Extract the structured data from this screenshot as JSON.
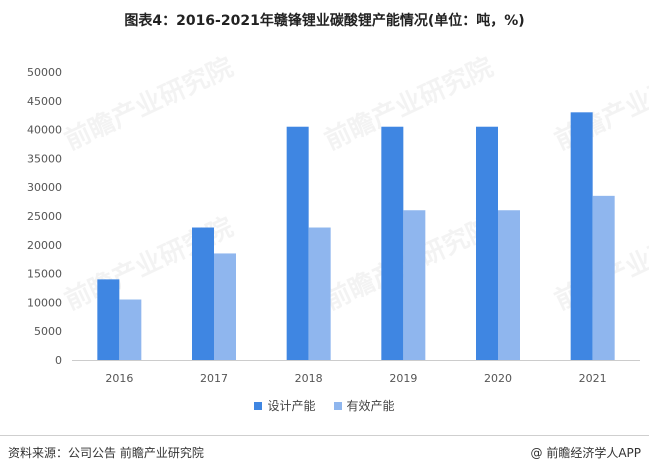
{
  "title": "图表4：2016-2021年赣锋锂业碳酸锂产能情况(单位：吨，%)",
  "watermark": "前瞻产业研究院",
  "colors": {
    "design": "#3f86e2",
    "effective": "#8fb6ee",
    "axis": "#cccccc",
    "text": "#555555"
  },
  "chart_data": {
    "type": "bar",
    "title": "图表4：2016-2021年赣锋锂业碳酸锂产能情况(单位：吨，%)",
    "categories": [
      "2016",
      "2017",
      "2018",
      "2019",
      "2020",
      "2021"
    ],
    "series": [
      {
        "name": "设计产能",
        "values": [
          14000,
          23000,
          40500,
          40500,
          40500,
          43000
        ]
      },
      {
        "name": "有效产能",
        "values": [
          10500,
          18500,
          23000,
          26000,
          26000,
          28500
        ]
      }
    ],
    "ylim": [
      0,
      50000
    ],
    "yticks": [
      0,
      5000,
      10000,
      15000,
      20000,
      25000,
      30000,
      35000,
      40000,
      45000,
      50000
    ],
    "grid": false,
    "legend": "bottom"
  },
  "legend": [
    {
      "label": "设计产能",
      "color": "#3f86e2"
    },
    {
      "label": "有效产能",
      "color": "#8fb6ee"
    }
  ],
  "footer": {
    "source": "资料来源：公司公告 前瞻产业研究院",
    "brand_icon": "@",
    "brand": "前瞻经济学人APP"
  }
}
